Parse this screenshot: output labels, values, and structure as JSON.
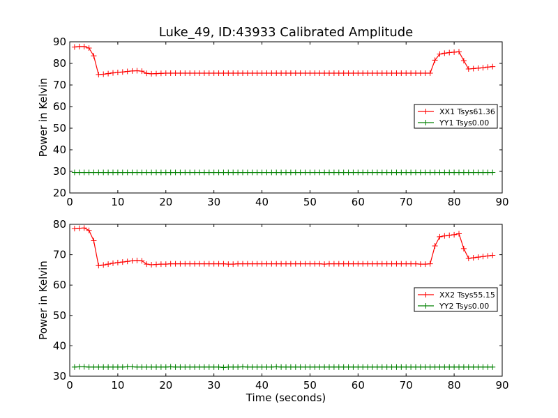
{
  "title": "Luke_49, ID:43933 Calibrated Amplitude",
  "colors": {
    "xx": "#ff0000",
    "yy": "#008000"
  },
  "chart_data": [
    {
      "type": "line",
      "title": "Luke_49, ID:43933 Calibrated Amplitude",
      "xlabel": "",
      "ylabel": "Power in Kelvin",
      "xlim": [
        0,
        90
      ],
      "ylim": [
        20,
        90
      ],
      "xticks": [
        0,
        10,
        20,
        30,
        40,
        50,
        60,
        70,
        80,
        90
      ],
      "yticks": [
        20,
        30,
        40,
        50,
        60,
        70,
        80,
        90
      ],
      "grid": false,
      "legend_position": "right",
      "series": [
        {
          "name": "XX1 Tsys61.36",
          "color": "#ff0000",
          "marker": "+",
          "x": [
            1,
            2,
            3,
            4,
            5,
            6,
            7,
            8,
            9,
            10,
            11,
            12,
            13,
            14,
            15,
            16,
            17,
            18,
            19,
            20,
            21,
            22,
            23,
            24,
            25,
            26,
            27,
            28,
            29,
            30,
            31,
            32,
            33,
            34,
            35,
            36,
            37,
            38,
            39,
            40,
            41,
            42,
            43,
            44,
            45,
            46,
            47,
            48,
            49,
            50,
            51,
            52,
            53,
            54,
            55,
            56,
            57,
            58,
            59,
            60,
            61,
            62,
            63,
            64,
            65,
            66,
            67,
            68,
            69,
            70,
            71,
            72,
            73,
            74,
            75,
            76,
            77,
            78,
            79,
            80,
            81,
            82,
            83,
            84,
            85,
            86,
            87,
            88
          ],
          "y": [
            87.6,
            87.8,
            87.8,
            87.1,
            83.5,
            74.8,
            75.0,
            75.3,
            75.6,
            75.8,
            76.0,
            76.3,
            76.5,
            76.6,
            76.4,
            75.4,
            75.2,
            75.3,
            75.4,
            75.5,
            75.5,
            75.5,
            75.5,
            75.5,
            75.5,
            75.5,
            75.5,
            75.5,
            75.5,
            75.5,
            75.5,
            75.5,
            75.5,
            75.5,
            75.5,
            75.5,
            75.5,
            75.5,
            75.5,
            75.5,
            75.5,
            75.5,
            75.5,
            75.5,
            75.5,
            75.5,
            75.5,
            75.5,
            75.5,
            75.5,
            75.5,
            75.5,
            75.5,
            75.5,
            75.5,
            75.5,
            75.5,
            75.5,
            75.5,
            75.5,
            75.5,
            75.5,
            75.5,
            75.5,
            75.5,
            75.5,
            75.5,
            75.5,
            75.5,
            75.5,
            75.5,
            75.5,
            75.5,
            75.5,
            75.5,
            81.5,
            84.3,
            84.7,
            85.0,
            85.2,
            85.4,
            81.3,
            77.4,
            77.6,
            77.8,
            78.0,
            78.3,
            78.5
          ]
        },
        {
          "name": "YY1 Tsys0.00",
          "color": "#008000",
          "marker": "+",
          "x": [
            1,
            2,
            3,
            4,
            5,
            6,
            7,
            8,
            9,
            10,
            11,
            12,
            13,
            14,
            15,
            16,
            17,
            18,
            19,
            20,
            21,
            22,
            23,
            24,
            25,
            26,
            27,
            28,
            29,
            30,
            31,
            32,
            33,
            34,
            35,
            36,
            37,
            38,
            39,
            40,
            41,
            42,
            43,
            44,
            45,
            46,
            47,
            48,
            49,
            50,
            51,
            52,
            53,
            54,
            55,
            56,
            57,
            58,
            59,
            60,
            61,
            62,
            63,
            64,
            65,
            66,
            67,
            68,
            69,
            70,
            71,
            72,
            73,
            74,
            75,
            76,
            77,
            78,
            79,
            80,
            81,
            82,
            83,
            84,
            85,
            86,
            87,
            88
          ],
          "y": [
            29.5,
            29.5,
            29.5,
            29.5,
            29.5,
            29.5,
            29.5,
            29.5,
            29.5,
            29.5,
            29.5,
            29.5,
            29.5,
            29.5,
            29.5,
            29.5,
            29.5,
            29.5,
            29.5,
            29.5,
            29.5,
            29.5,
            29.5,
            29.5,
            29.5,
            29.5,
            29.5,
            29.5,
            29.5,
            29.5,
            29.5,
            29.5,
            29.5,
            29.5,
            29.5,
            29.5,
            29.5,
            29.5,
            29.5,
            29.5,
            29.5,
            29.5,
            29.5,
            29.5,
            29.5,
            29.5,
            29.5,
            29.5,
            29.5,
            29.5,
            29.5,
            29.5,
            29.5,
            29.5,
            29.5,
            29.5,
            29.5,
            29.5,
            29.5,
            29.5,
            29.5,
            29.5,
            29.5,
            29.5,
            29.5,
            29.5,
            29.5,
            29.5,
            29.5,
            29.5,
            29.5,
            29.5,
            29.5,
            29.5,
            29.5,
            29.5,
            29.5,
            29.5,
            29.5,
            29.5,
            29.5,
            29.5,
            29.5,
            29.5,
            29.5,
            29.5,
            29.5,
            29.5
          ]
        }
      ]
    },
    {
      "type": "line",
      "title": "",
      "xlabel": "Time (seconds)",
      "ylabel": "Power in Kelvin",
      "xlim": [
        0,
        90
      ],
      "ylim": [
        30,
        80
      ],
      "xticks": [
        0,
        10,
        20,
        30,
        40,
        50,
        60,
        70,
        80,
        90
      ],
      "yticks": [
        30,
        40,
        50,
        60,
        70,
        80
      ],
      "grid": false,
      "legend_position": "right",
      "series": [
        {
          "name": "XX2 Tsys55.15",
          "color": "#ff0000",
          "marker": "+",
          "x": [
            1,
            2,
            3,
            4,
            5,
            6,
            7,
            8,
            9,
            10,
            11,
            12,
            13,
            14,
            15,
            16,
            17,
            18,
            19,
            20,
            21,
            22,
            23,
            24,
            25,
            26,
            27,
            28,
            29,
            30,
            31,
            32,
            33,
            34,
            35,
            36,
            37,
            38,
            39,
            40,
            41,
            42,
            43,
            44,
            45,
            46,
            47,
            48,
            49,
            50,
            51,
            52,
            53,
            54,
            55,
            56,
            57,
            58,
            59,
            60,
            61,
            62,
            63,
            64,
            65,
            66,
            67,
            68,
            69,
            70,
            71,
            72,
            73,
            74,
            75,
            76,
            77,
            78,
            79,
            80,
            81,
            82,
            83,
            84,
            85,
            86,
            87,
            88
          ],
          "y": [
            78.6,
            78.7,
            78.8,
            78.0,
            74.6,
            66.4,
            66.6,
            66.9,
            67.2,
            67.4,
            67.6,
            67.8,
            68.0,
            68.1,
            68.0,
            66.9,
            66.7,
            66.8,
            66.9,
            66.9,
            67.0,
            67.0,
            67.0,
            67.0,
            67.0,
            67.0,
            67.0,
            67.0,
            67.0,
            67.0,
            67.0,
            67.0,
            66.9,
            66.9,
            67.0,
            67.0,
            67.0,
            67.0,
            67.0,
            67.0,
            67.0,
            67.0,
            67.0,
            67.0,
            67.0,
            67.0,
            67.0,
            67.0,
            67.0,
            67.0,
            67.0,
            67.0,
            66.9,
            67.0,
            67.0,
            67.0,
            67.0,
            67.0,
            67.0,
            67.0,
            67.0,
            67.0,
            67.0,
            67.0,
            67.0,
            67.0,
            67.0,
            67.0,
            67.0,
            67.0,
            67.0,
            67.0,
            66.9,
            66.9,
            67.0,
            72.9,
            75.9,
            76.2,
            76.4,
            76.6,
            76.9,
            72.0,
            68.8,
            69.0,
            69.2,
            69.4,
            69.6,
            69.8
          ]
        },
        {
          "name": "YY2 Tsys0.00",
          "color": "#008000",
          "marker": "+",
          "x": [
            1,
            2,
            3,
            4,
            5,
            6,
            7,
            8,
            9,
            10,
            11,
            12,
            13,
            14,
            15,
            16,
            17,
            18,
            19,
            20,
            21,
            22,
            23,
            24,
            25,
            26,
            27,
            28,
            29,
            30,
            31,
            32,
            33,
            34,
            35,
            36,
            37,
            38,
            39,
            40,
            41,
            42,
            43,
            44,
            45,
            46,
            47,
            48,
            49,
            50,
            51,
            52,
            53,
            54,
            55,
            56,
            57,
            58,
            59,
            60,
            61,
            62,
            63,
            64,
            65,
            66,
            67,
            68,
            69,
            70,
            71,
            72,
            73,
            74,
            75,
            76,
            77,
            78,
            79,
            80,
            81,
            82,
            83,
            84,
            85,
            86,
            87,
            88
          ],
          "y": [
            33.0,
            33.1,
            33.1,
            33.0,
            33.0,
            33.0,
            33.0,
            33.0,
            33.0,
            33.0,
            33.0,
            33.1,
            33.1,
            33.0,
            33.0,
            33.0,
            33.0,
            33.0,
            33.0,
            33.0,
            33.1,
            33.0,
            33.0,
            33.0,
            33.0,
            33.0,
            33.0,
            33.0,
            33.0,
            33.0,
            33.0,
            32.9,
            33.0,
            33.0,
            33.0,
            33.1,
            33.0,
            33.0,
            33.0,
            33.0,
            33.0,
            33.0,
            33.1,
            33.0,
            33.0,
            33.0,
            33.0,
            33.0,
            33.0,
            33.0,
            33.0,
            33.0,
            33.0,
            33.0,
            33.0,
            33.0,
            33.0,
            33.0,
            33.0,
            33.0,
            33.0,
            33.0,
            33.0,
            33.0,
            33.0,
            33.0,
            33.0,
            33.0,
            33.0,
            33.0,
            33.0,
            33.0,
            33.0,
            33.0,
            33.0,
            33.0,
            33.0,
            33.0,
            33.0,
            33.0,
            33.0,
            33.0,
            33.0,
            33.0,
            33.0,
            33.0,
            33.0,
            33.0
          ]
        }
      ]
    }
  ]
}
